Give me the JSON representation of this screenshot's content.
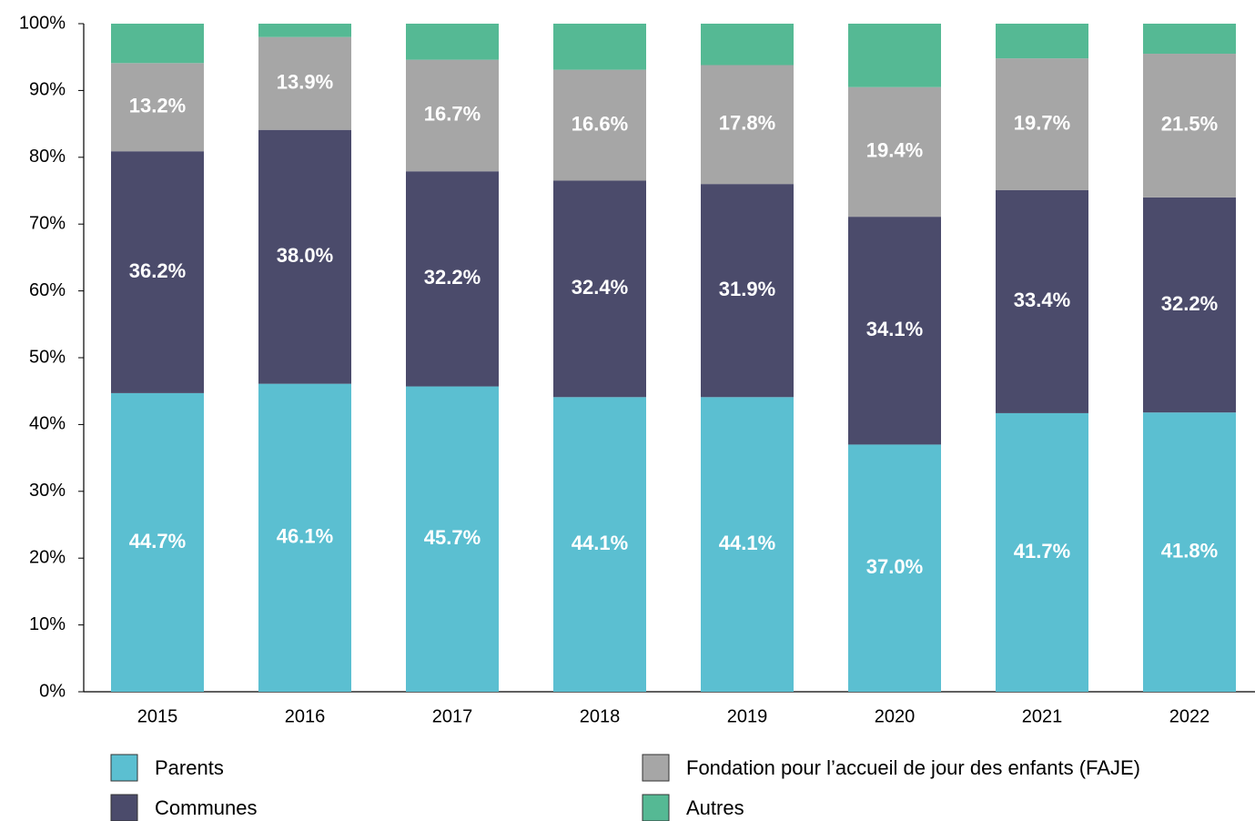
{
  "chart_data": {
    "type": "stacked_bar",
    "categories": [
      "2015",
      "2016",
      "2017",
      "2018",
      "2019",
      "2020",
      "2021",
      "2022"
    ],
    "series": [
      {
        "name": "Parents",
        "color": "#5bbfd1",
        "values": [
          44.7,
          46.1,
          45.7,
          44.1,
          44.1,
          37.0,
          41.7,
          41.8
        ],
        "value_labels": [
          "44.7%",
          "46.1%",
          "45.7%",
          "44.1%",
          "44.1%",
          "37.0%",
          "41.7%",
          "41.8%"
        ]
      },
      {
        "name": "Communes",
        "color": "#4b4b6b",
        "values": [
          36.2,
          38.0,
          32.2,
          32.4,
          31.9,
          34.1,
          33.4,
          32.2
        ],
        "value_labels": [
          "36.2%",
          "38.0%",
          "32.2%",
          "32.4%",
          "31.9%",
          "34.1%",
          "33.4%",
          "32.2%"
        ]
      },
      {
        "name": "Fondation pour l’accueil de jour des enfants (FAJE)",
        "color": "#a6a6a6",
        "values": [
          13.2,
          13.9,
          16.7,
          16.6,
          17.8,
          19.4,
          19.7,
          21.5
        ],
        "value_labels": [
          "13.2%",
          "13.9%",
          "16.7%",
          "16.6%",
          "17.8%",
          "19.4%",
          "19.7%",
          "21.5%"
        ]
      },
      {
        "name": "Autres",
        "color": "#55b994",
        "values": [
          5.9,
          2.0,
          5.4,
          6.9,
          6.2,
          9.5,
          5.2,
          4.5
        ]
      }
    ],
    "ylim": [
      0,
      100
    ],
    "yticks": [
      {
        "value": 0,
        "label": "0%"
      },
      {
        "value": 10,
        "label": "10%"
      },
      {
        "value": 20,
        "label": "20%"
      },
      {
        "value": 30,
        "label": "30%"
      },
      {
        "value": 40,
        "label": "40%"
      },
      {
        "value": 50,
        "label": "50%"
      },
      {
        "value": 60,
        "label": "60%"
      },
      {
        "value": 70,
        "label": "70%"
      },
      {
        "value": 80,
        "label": "80%"
      },
      {
        "value": 90,
        "label": "90%"
      },
      {
        "value": 100,
        "label": "100%"
      }
    ],
    "legend": "bottom"
  }
}
